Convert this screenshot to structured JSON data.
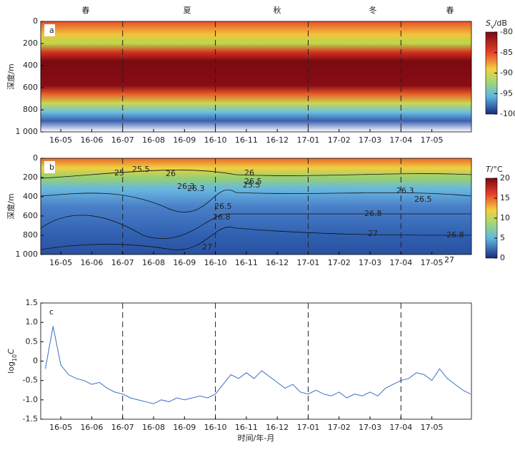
{
  "chart_data": [
    {
      "type": "heatmap",
      "panel_label": "a",
      "seasons": [
        "春",
        "夏",
        "秋",
        "冬",
        "春"
      ],
      "ylabel": "深度/m",
      "y_inverted": true,
      "ylim": [
        0,
        1000
      ],
      "yticks": [
        0,
        200,
        400,
        600,
        800,
        {
          "value": 1000,
          "label": "1 000"
        }
      ],
      "xlim": [
        -0.65,
        13.28
      ],
      "xticks": [
        {
          "value": 0,
          "label": "16-05"
        },
        {
          "value": 1,
          "label": "16-06"
        },
        {
          "value": 2,
          "label": "16-07"
        },
        {
          "value": 3,
          "label": "16-08"
        },
        {
          "value": 4,
          "label": "16-09"
        },
        {
          "value": 5,
          "label": "16-10"
        },
        {
          "value": 6,
          "label": "16-11"
        },
        {
          "value": 7,
          "label": "16-12"
        },
        {
          "value": 8,
          "label": "17-01"
        },
        {
          "value": 9,
          "label": "17-02"
        },
        {
          "value": 10,
          "label": "17-03"
        },
        {
          "value": 11,
          "label": "17-04"
        },
        {
          "value": 12,
          "label": "17-05"
        }
      ],
      "dashed_lines": [
        2,
        5,
        8,
        11
      ],
      "colorbar": {
        "symbol": "S",
        "subscript": "v",
        "unit": "/dB",
        "lim": [
          -100,
          -80
        ],
        "ticks": [
          -80,
          -85,
          -90,
          -95,
          -100
        ]
      }
    },
    {
      "type": "heatmap",
      "panel_label": "b",
      "ylabel": "深度/m",
      "y_inverted": true,
      "ylim": [
        0,
        1000
      ],
      "yticks": [
        0,
        200,
        400,
        600,
        800,
        {
          "value": 1000,
          "label": "1 000"
        }
      ],
      "xlim": [
        -0.65,
        13.28
      ],
      "xticks": [
        {
          "value": 0,
          "label": "16-05"
        },
        {
          "value": 1,
          "label": "16-06"
        },
        {
          "value": 2,
          "label": "16-07"
        },
        {
          "value": 3,
          "label": "16-08"
        },
        {
          "value": 4,
          "label": "16-09"
        },
        {
          "value": 5,
          "label": "16-10"
        },
        {
          "value": 6,
          "label": "16-11"
        },
        {
          "value": 7,
          "label": "16-12"
        },
        {
          "value": 8,
          "label": "17-01"
        },
        {
          "value": 9,
          "label": "17-02"
        },
        {
          "value": 10,
          "label": "17-03"
        },
        {
          "value": 11,
          "label": "17-04"
        },
        {
          "value": 12,
          "label": "17-05"
        }
      ],
      "dashed_lines": [
        2,
        5,
        8,
        11
      ],
      "contour_labels": [
        "25",
        "25.5",
        "26",
        "26.3",
        "26.5",
        "26.8",
        "27",
        "26",
        "25.5",
        "26.5",
        "26.3",
        "26.8",
        "27",
        "26.3",
        "26.5",
        "26.8",
        "27"
      ],
      "colorbar": {
        "symbol": "T",
        "unit": "/°C",
        "lim": [
          0,
          20
        ],
        "ticks": [
          0,
          5,
          10,
          15,
          20
        ]
      }
    },
    {
      "type": "line",
      "panel_label": "c",
      "color": "#3a6fc0",
      "ylabel": {
        "base": "log",
        "subscript": "10",
        "symbol": "C"
      },
      "xlabel": "时间/年-月",
      "ylim": [
        -1.5,
        1.5
      ],
      "yticks": [
        -1.5,
        {
          "value": -1,
          "label": "-1.0"
        },
        -0.5,
        0,
        0.5,
        {
          "value": 1,
          "label": "1.0"
        },
        1.5
      ],
      "xlim": [
        -0.65,
        13.28
      ],
      "xticks": [
        {
          "value": 0,
          "label": "16-05"
        },
        {
          "value": 1,
          "label": "16-06"
        },
        {
          "value": 2,
          "label": "16-07"
        },
        {
          "value": 3,
          "label": "16-08"
        },
        {
          "value": 4,
          "label": "16-09"
        },
        {
          "value": 5,
          "label": "16-10"
        },
        {
          "value": 6,
          "label": "16-11"
        },
        {
          "value": 7,
          "label": "16-12"
        },
        {
          "value": 8,
          "label": "17-01"
        },
        {
          "value": 9,
          "label": "17-02"
        },
        {
          "value": 10,
          "label": "17-03"
        },
        {
          "value": 11,
          "label": "17-04"
        },
        {
          "value": 12,
          "label": "17-05"
        }
      ],
      "dashed_lines": [
        2,
        5,
        8,
        11
      ],
      "x": [
        -0.5,
        -0.25,
        0,
        0.25,
        0.5,
        0.75,
        1,
        1.25,
        1.5,
        1.75,
        2,
        2.25,
        2.5,
        2.75,
        3,
        3.25,
        3.5,
        3.75,
        4,
        4.25,
        4.5,
        4.75,
        5,
        5.25,
        5.5,
        5.75,
        6,
        6.25,
        6.5,
        6.75,
        7,
        7.25,
        7.5,
        7.75,
        8,
        8.25,
        8.5,
        8.75,
        9,
        9.25,
        9.5,
        9.75,
        10,
        10.25,
        10.5,
        10.75,
        11,
        11.25,
        11.5,
        11.75,
        12,
        12.25,
        12.5,
        12.75,
        13,
        13.25
      ],
      "values": [
        -0.2,
        0.9,
        -0.1,
        -0.35,
        -0.45,
        -0.5,
        -0.6,
        -0.55,
        -0.7,
        -0.8,
        -0.85,
        -0.95,
        -1.0,
        -1.05,
        -1.1,
        -1.0,
        -1.05,
        -0.95,
        -1.0,
        -0.95,
        -0.9,
        -0.95,
        -0.85,
        -0.6,
        -0.35,
        -0.45,
        -0.3,
        -0.45,
        -0.25,
        -0.4,
        -0.55,
        -0.7,
        -0.6,
        -0.8,
        -0.85,
        -0.75,
        -0.85,
        -0.9,
        -0.8,
        -0.95,
        -0.85,
        -0.9,
        -0.8,
        -0.9,
        -0.7,
        -0.6,
        -0.5,
        -0.45,
        -0.3,
        -0.35,
        -0.5,
        -0.2,
        -0.45,
        -0.6,
        -0.75,
        -0.85
      ]
    }
  ]
}
